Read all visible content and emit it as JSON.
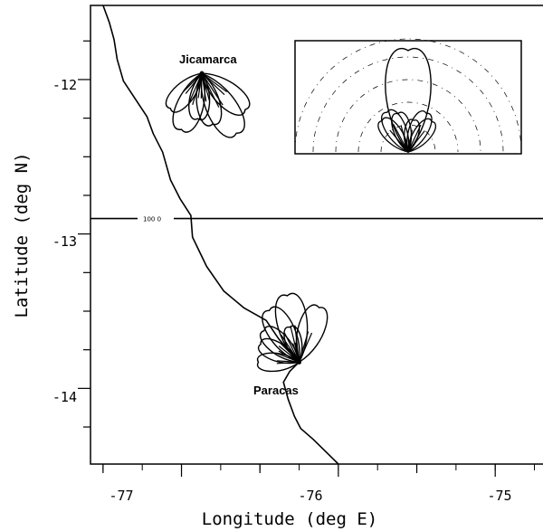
{
  "axes": {
    "xlabel": "Longitude (deg E)",
    "ylabel": "Latitude (deg N)",
    "x_ticks": [
      "-77",
      "-76",
      "-75"
    ],
    "y_ticks": [
      "-12",
      "-13",
      "-14"
    ]
  },
  "sites": {
    "jicamarca": "Jicamarca",
    "paracas": "Paracas"
  },
  "contour_label": "100 0",
  "chart_data": {
    "type": "map",
    "xlabel": "Longitude (deg E)",
    "ylabel": "Latitude (deg N)",
    "xlim": [
      -77.58,
      -74.58
    ],
    "ylim": [
      -14.49,
      -11.52
    ],
    "x_major_ticks": [
      -77,
      -76,
      -75
    ],
    "y_major_ticks": [
      -12,
      -13,
      -14
    ],
    "sites": [
      {
        "name": "Jicamarca",
        "lon": -76.87,
        "lat": -11.96
      },
      {
        "name": "Paracas",
        "lon": -76.25,
        "lat": -13.83
      }
    ],
    "contour": {
      "label": "100 0",
      "lat": -12.9
    },
    "coastline": [
      [
        -77.5,
        -11.52
      ],
      [
        -77.46,
        -11.63
      ],
      [
        -77.43,
        -11.74
      ],
      [
        -77.41,
        -11.87
      ],
      [
        -77.37,
        -12.01
      ],
      [
        -77.22,
        -12.24
      ],
      [
        -77.18,
        -12.35
      ],
      [
        -77.12,
        -12.47
      ],
      [
        -77.07,
        -12.65
      ],
      [
        -77.01,
        -12.77
      ],
      [
        -76.94,
        -12.88
      ],
      [
        -76.93,
        -13.02
      ],
      [
        -76.84,
        -13.21
      ],
      [
        -76.73,
        -13.37
      ],
      [
        -76.6,
        -13.48
      ],
      [
        -76.46,
        -13.56
      ],
      [
        -76.38,
        -13.68
      ],
      [
        -76.25,
        -13.83
      ],
      [
        -76.31,
        -13.89
      ],
      [
        -76.35,
        -13.96
      ],
      [
        -76.32,
        -14.07
      ],
      [
        -76.28,
        -14.18
      ],
      [
        -76.24,
        -14.26
      ],
      [
        -76.16,
        -14.33
      ],
      [
        -76.08,
        -14.41
      ],
      [
        -76.0,
        -14.49
      ]
    ],
    "lobes": {
      "jicamarca": [
        {
          "az": 130,
          "len": 0.36
        },
        {
          "az": 150,
          "len": 0.44
        },
        {
          "az": 168,
          "len": 0.33
        },
        {
          "az": 185,
          "len": 0.29
        },
        {
          "az": 200,
          "len": 0.38
        },
        {
          "az": 222,
          "len": 0.3
        }
      ],
      "paracas": [
        {
          "az": 20,
          "len": 0.37
        },
        {
          "az": 350,
          "len": 0.43
        },
        {
          "az": 330,
          "len": 0.38
        },
        {
          "az": 312,
          "len": 0.3
        },
        {
          "az": 295,
          "len": 0.27
        },
        {
          "az": 270,
          "len": 0.26
        },
        {
          "az": 345,
          "len": 0.23
        }
      ]
    },
    "inset": {
      "main_beam_len": 0.95,
      "lobes": [
        {
          "az": -40,
          "len": 0.38
        },
        {
          "az": -28,
          "len": 0.42
        },
        {
          "az": -15,
          "len": 0.37
        },
        {
          "az": 10,
          "len": 0.3
        },
        {
          "az": 25,
          "len": 0.4
        },
        {
          "az": 38,
          "len": 0.36
        }
      ]
    }
  }
}
